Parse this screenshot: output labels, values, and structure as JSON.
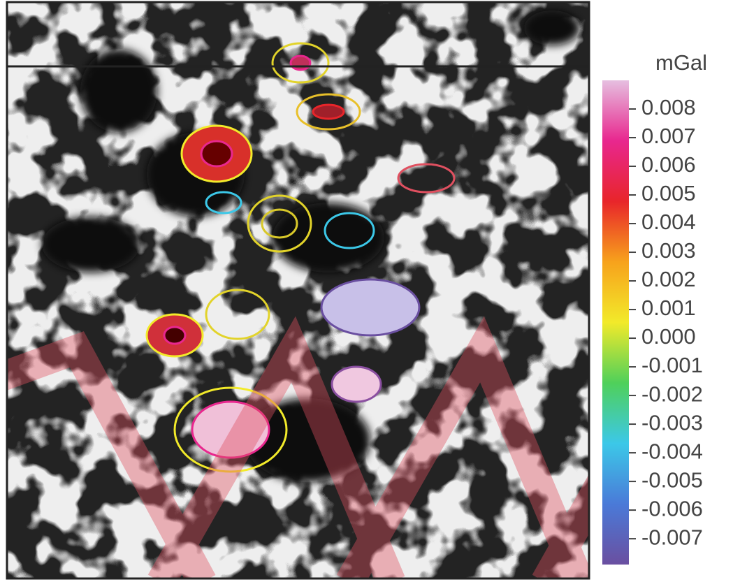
{
  "colorbar": {
    "label": "mGal",
    "lim": [
      -0.0079,
      0.009
    ],
    "ticks": [
      0.008,
      0.007,
      0.006,
      0.005,
      0.004,
      0.003,
      0.002,
      0.001,
      {
        "value": 0,
        "label": "0.000"
      },
      -0.001,
      -0.002,
      -0.003,
      -0.004,
      -0.005,
      -0.006,
      -0.007
    ],
    "colors": [
      "#6a4fa0",
      "#4a7ad8",
      "#3cc8e8",
      "#4fd05a",
      "#f2ea2a",
      "#f7a21c",
      "#e8252a",
      "#e8278e",
      "#e6bfe0"
    ]
  }
}
